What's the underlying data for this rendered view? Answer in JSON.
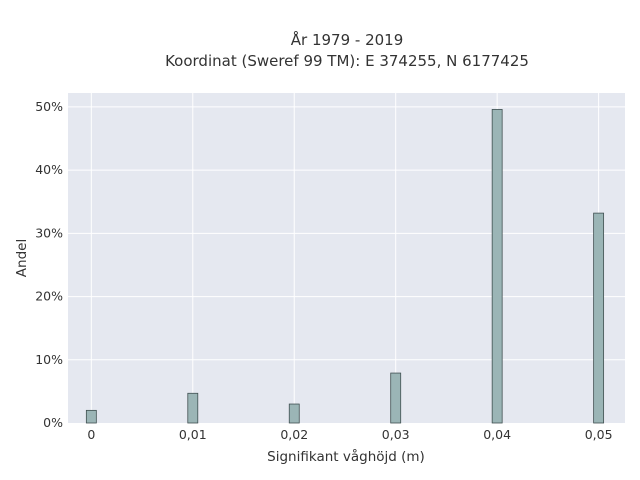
{
  "chart_data": {
    "type": "bar",
    "title": "År 1979 - 2019",
    "subtitle": "Koordinat (Sweref 99 TM): E 374255, N 6177425",
    "xlabel": "Signifikant våghöjd (m)",
    "ylabel": "Andel",
    "x": [
      0,
      0.01,
      0.02,
      0.03,
      0.04,
      0.05
    ],
    "values": [
      2.0,
      4.7,
      3.0,
      7.9,
      49.6,
      33.2
    ],
    "xticks": [
      "0",
      "0,01",
      "0,02",
      "0,03",
      "0,04",
      "0,05"
    ],
    "yticks": [
      "0%",
      "10%",
      "20%",
      "30%",
      "40%",
      "50%"
    ],
    "xlim": [
      -0.0023,
      0.0526
    ],
    "ylim": [
      0,
      52.2
    ],
    "grid": true,
    "colors": {
      "bar_fill": "#9bb5b6",
      "bar_stroke": "#3f4f50",
      "plot_background": "#e5e8f0",
      "grid": "#ffffff"
    }
  }
}
